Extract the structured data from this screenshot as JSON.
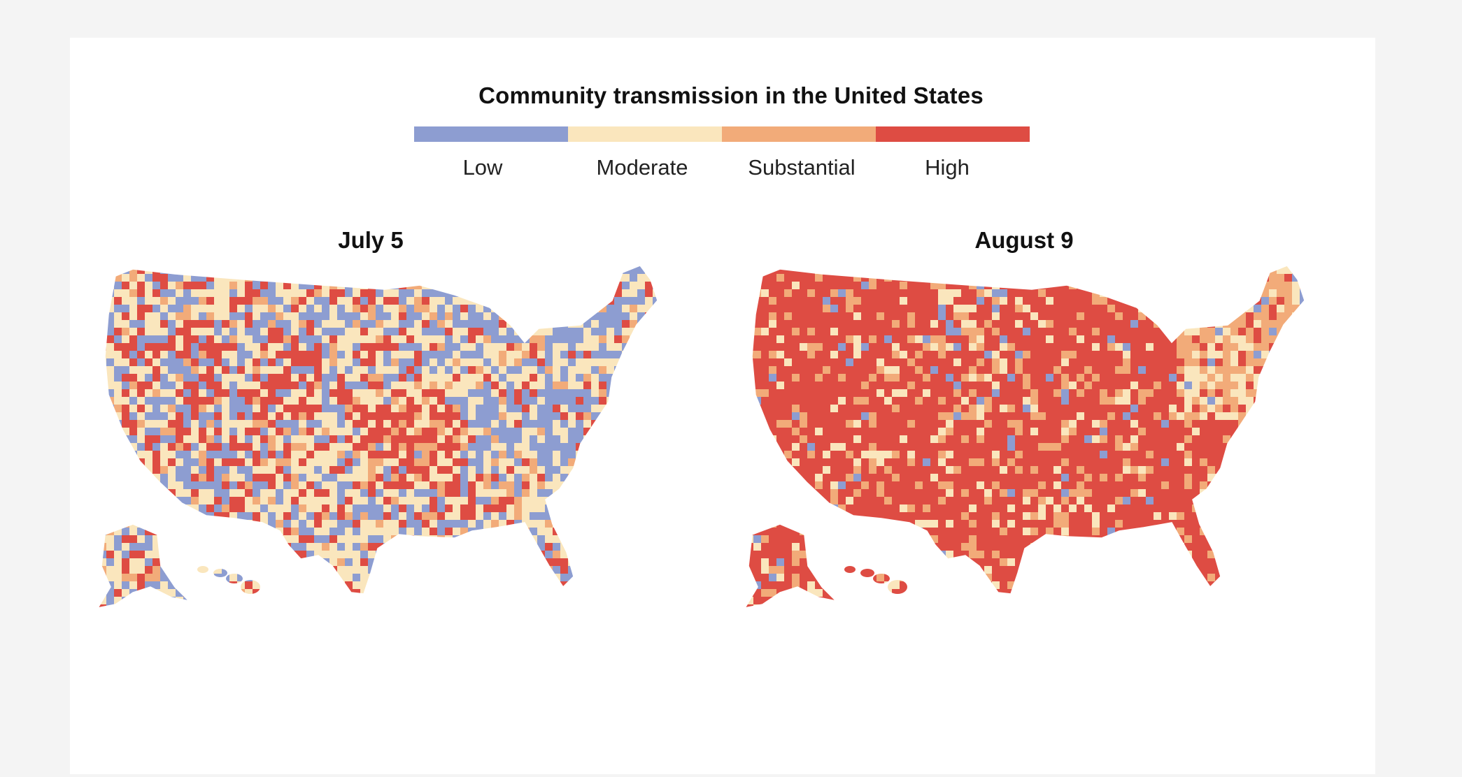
{
  "title": "Community transmission in the United States",
  "legend": [
    {
      "label": "Low",
      "color": "#8d9dd1"
    },
    {
      "label": "Moderate",
      "color": "#fae6bd"
    },
    {
      "label": "Substantial",
      "color": "#f2ab79"
    },
    {
      "label": "High",
      "color": "#de4c43"
    }
  ],
  "maps": [
    {
      "title": "July 5",
      "mix": {
        "Low": 0.3,
        "Moderate": 0.38,
        "Substantial": 0.1,
        "High": 0.22
      }
    },
    {
      "title": "August 9",
      "mix": {
        "Low": 0.03,
        "Moderate": 0.08,
        "Substantial": 0.14,
        "High": 0.75
      }
    }
  ]
}
